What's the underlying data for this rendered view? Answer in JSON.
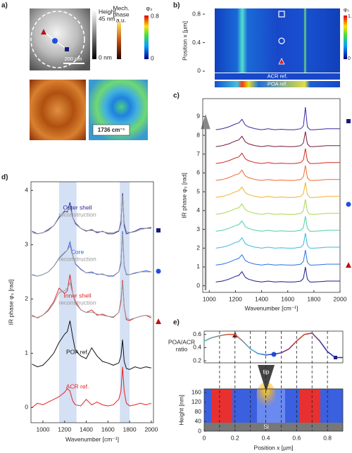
{
  "panel_labels": [
    "a)",
    "b)",
    "c)",
    "d)",
    "e)"
  ],
  "panel_a": {
    "height_label": "Height",
    "height_max": "45 nm",
    "height_min": "0 nm",
    "mech_label": [
      "Mech.",
      "phase"
    ],
    "mech_unit": "a.u.",
    "phase_label": "φ₃",
    "phase_max": 0.8,
    "phase_min": 0,
    "scale_bar": "200 nm",
    "wavenumber_label": "1736 cm⁻¹"
  },
  "panel_b": {
    "ylabel": "Position x [µm]",
    "ylim": [
      -0.02,
      0.88
    ],
    "yticks": [
      0,
      0.4,
      0.8
    ],
    "acr": "ACR ref.",
    "poa": "POA ref.",
    "cbar_label": "φ₃",
    "cbar_max": 1.2,
    "cbar_min": 0
  },
  "chart_data": [
    {
      "type": "line",
      "xlabel": "Wavenumber [cm⁻¹]",
      "ylabel": "IR phase φ₃ [rad]",
      "xlim": [
        890,
        2020
      ],
      "ylim": [
        -0.28,
        4.16
      ],
      "xticks": [
        1000,
        1200,
        1400,
        1600,
        1800,
        2000
      ],
      "yticks": [
        0,
        1,
        2,
        3,
        4
      ],
      "bands": [
        [
          1150,
          1310
        ],
        [
          1710,
          1800
        ]
      ],
      "x": [
        900,
        950,
        1000,
        1050,
        1100,
        1150,
        1200,
        1225,
        1250,
        1275,
        1300,
        1350,
        1400,
        1450,
        1500,
        1550,
        1600,
        1650,
        1700,
        1720,
        1735,
        1750,
        1770,
        1800,
        1850,
        1900,
        1950,
        2000
      ],
      "series": [
        {
          "name": "Outer shell",
          "color": "#2a2a9a",
          "values": [
            3.25,
            3.2,
            3.22,
            3.28,
            3.35,
            3.5,
            3.62,
            3.6,
            3.78,
            3.5,
            3.4,
            3.3,
            3.25,
            3.28,
            3.22,
            3.25,
            3.2,
            3.2,
            3.25,
            3.4,
            3.95,
            3.35,
            3.2,
            3.22,
            3.25,
            3.3,
            3.3,
            3.32
          ]
        },
        {
          "name": "reconstruction",
          "color": "#999999",
          "values": [
            3.22,
            3.2,
            3.22,
            3.26,
            3.35,
            3.52,
            3.6,
            3.62,
            3.7,
            3.5,
            3.38,
            3.3,
            3.26,
            3.26,
            3.24,
            3.24,
            3.22,
            3.22,
            3.26,
            3.45,
            3.9,
            3.4,
            3.24,
            3.22,
            3.24,
            3.28,
            3.3,
            3.3
          ]
        },
        {
          "name": "Core",
          "color": "#3a5fe0",
          "values": [
            2.45,
            2.42,
            2.45,
            2.5,
            2.6,
            2.75,
            2.85,
            2.9,
            3.05,
            2.8,
            2.65,
            2.55,
            2.48,
            2.5,
            2.45,
            2.46,
            2.42,
            2.42,
            2.5,
            2.65,
            3.25,
            2.6,
            2.45,
            2.45,
            2.48,
            2.5,
            2.52,
            2.5
          ]
        },
        {
          "name": "reconstruction",
          "color": "#999999",
          "values": [
            2.44,
            2.42,
            2.45,
            2.5,
            2.6,
            2.76,
            2.86,
            2.9,
            2.98,
            2.8,
            2.64,
            2.54,
            2.48,
            2.48,
            2.46,
            2.45,
            2.43,
            2.43,
            2.5,
            2.7,
            3.2,
            2.62,
            2.46,
            2.45,
            2.47,
            2.5,
            2.5,
            2.5
          ]
        },
        {
          "name": "Inner shell",
          "color": "#e02a2a",
          "values": [
            1.7,
            1.65,
            1.7,
            1.8,
            1.95,
            2.2,
            2.1,
            2.15,
            2.45,
            2.1,
            1.95,
            1.8,
            1.75,
            1.8,
            1.7,
            1.72,
            1.68,
            1.66,
            1.75,
            1.95,
            2.35,
            1.85,
            1.62,
            1.6,
            1.65,
            1.68,
            1.7,
            1.65
          ]
        },
        {
          "name": "reconstruction",
          "color": "#999999",
          "values": [
            1.68,
            1.66,
            1.7,
            1.78,
            1.92,
            2.12,
            2.15,
            2.2,
            2.3,
            2.1,
            1.92,
            1.8,
            1.75,
            1.76,
            1.72,
            1.7,
            1.68,
            1.67,
            1.75,
            2.0,
            2.3,
            1.85,
            1.65,
            1.62,
            1.65,
            1.68,
            1.7,
            1.68
          ]
        },
        {
          "name": "POA ref.",
          "color": "#111111",
          "values": [
            0.8,
            0.75,
            0.78,
            0.88,
            1.0,
            1.2,
            1.35,
            1.4,
            1.6,
            1.3,
            1.05,
            0.95,
            0.9,
            1.1,
            0.95,
            0.85,
            0.82,
            0.78,
            0.82,
            0.95,
            1.25,
            0.85,
            0.72,
            0.7,
            0.75,
            0.72,
            0.75,
            0.73
          ]
        },
        {
          "name": "ACR ref.",
          "color": "#e82020",
          "values": [
            0.0,
            0.08,
            0.05,
            0.1,
            0.15,
            0.2,
            0.28,
            0.35,
            0.3,
            0.12,
            0.05,
            0.03,
            0.15,
            0.05,
            0.1,
            0.05,
            0.03,
            0.05,
            0.15,
            0.3,
            0.75,
            0.3,
            0.08,
            0.03,
            0.05,
            0.08,
            0.05,
            0.08
          ]
        }
      ]
    },
    {
      "type": "line",
      "xlabel": "Wavenumber [cm⁻¹]",
      "ylabel": "IR phase φ₃ [rad]",
      "xlim": [
        950,
        2000
      ],
      "ylim": [
        -0.35,
        9.95
      ],
      "xticks": [
        1000,
        1200,
        1400,
        1600,
        1800,
        2000
      ],
      "yticks": [
        0,
        1,
        2,
        3,
        4,
        5,
        6,
        7,
        8,
        9
      ],
      "x": [
        1050,
        1100,
        1150,
        1200,
        1225,
        1250,
        1275,
        1300,
        1350,
        1400,
        1450,
        1500,
        1550,
        1600,
        1650,
        1700,
        1720,
        1735,
        1750,
        1770,
        1800,
        1850,
        1900,
        1950,
        2000
      ],
      "series": [
        {
          "color": "#1a1a8c",
          "values": [
            0.2,
            0.25,
            0.35,
            0.5,
            0.55,
            0.75,
            0.45,
            0.35,
            0.25,
            0.2,
            0.25,
            0.2,
            0.22,
            0.2,
            0.2,
            0.25,
            0.4,
            1.0,
            0.35,
            0.2,
            0.2,
            0.22,
            0.25,
            0.25,
            0.25
          ]
        },
        {
          "color": "#2a6fe0",
          "values": [
            1.1,
            1.15,
            1.25,
            1.4,
            1.45,
            1.65,
            1.35,
            1.25,
            1.15,
            1.1,
            1.15,
            1.1,
            1.12,
            1.1,
            1.1,
            1.15,
            1.3,
            1.9,
            1.25,
            1.1,
            1.1,
            1.12,
            1.15,
            1.15,
            1.15
          ]
        },
        {
          "color": "#3ab8e0",
          "values": [
            2.0,
            2.05,
            2.15,
            2.3,
            2.35,
            2.55,
            2.25,
            2.15,
            2.05,
            2.0,
            2.05,
            2.0,
            2.02,
            2.0,
            2.0,
            2.05,
            2.2,
            2.8,
            2.15,
            2.0,
            2.0,
            2.02,
            2.05,
            2.05,
            2.05
          ]
        },
        {
          "color": "#4fd0a0",
          "values": [
            2.9,
            2.95,
            3.05,
            3.2,
            3.25,
            3.45,
            3.15,
            3.05,
            2.95,
            2.9,
            2.95,
            2.9,
            2.92,
            2.9,
            2.9,
            2.95,
            3.1,
            3.7,
            3.05,
            2.9,
            2.9,
            2.92,
            2.95,
            2.95,
            2.95
          ]
        },
        {
          "color": "#a8d850",
          "values": [
            3.8,
            3.85,
            3.95,
            4.1,
            4.15,
            4.35,
            4.05,
            3.95,
            3.85,
            3.8,
            3.85,
            3.8,
            3.82,
            3.8,
            3.8,
            3.85,
            4.0,
            4.6,
            3.95,
            3.8,
            3.8,
            3.82,
            3.85,
            3.85,
            3.85
          ]
        },
        {
          "color": "#f0b030",
          "values": [
            4.7,
            4.75,
            4.85,
            5.0,
            5.05,
            5.25,
            4.95,
            4.85,
            4.75,
            4.7,
            4.75,
            4.7,
            4.72,
            4.7,
            4.7,
            4.75,
            4.9,
            5.5,
            4.85,
            4.7,
            4.7,
            4.72,
            4.75,
            4.75,
            4.75
          ]
        },
        {
          "color": "#f06a30",
          "values": [
            5.6,
            5.65,
            5.75,
            5.9,
            5.95,
            6.15,
            5.85,
            5.75,
            5.65,
            5.6,
            5.65,
            5.6,
            5.62,
            5.6,
            5.6,
            5.65,
            5.8,
            6.4,
            5.75,
            5.6,
            5.6,
            5.62,
            5.65,
            5.65,
            5.65
          ]
        },
        {
          "color": "#d02a20",
          "values": [
            6.5,
            6.55,
            6.65,
            6.8,
            6.85,
            7.05,
            6.75,
            6.65,
            6.55,
            6.5,
            6.55,
            6.5,
            6.52,
            6.5,
            6.5,
            6.55,
            6.7,
            7.3,
            6.65,
            6.5,
            6.5,
            6.52,
            6.55,
            6.55,
            6.55
          ]
        },
        {
          "color": "#7a1a3a",
          "values": [
            7.4,
            7.45,
            7.55,
            7.7,
            7.75,
            7.95,
            7.65,
            7.55,
            7.45,
            7.4,
            7.45,
            7.4,
            7.42,
            7.4,
            7.4,
            7.45,
            7.6,
            8.2,
            7.55,
            7.4,
            7.4,
            7.42,
            7.45,
            7.45,
            7.45
          ]
        },
        {
          "color": "#3a2aa0",
          "values": [
            8.3,
            8.35,
            8.45,
            8.6,
            8.65,
            8.85,
            8.55,
            8.45,
            8.35,
            8.3,
            8.35,
            8.3,
            8.32,
            8.3,
            8.3,
            8.35,
            8.5,
            9.5,
            8.45,
            8.3,
            8.3,
            8.32,
            8.35,
            8.35,
            8.35
          ]
        }
      ]
    },
    {
      "type": "line",
      "xlabel": "Position x [µm]",
      "ylabel": [
        "POA/ACR",
        "ratio"
      ],
      "xlim": [
        0,
        0.9
      ],
      "ylim": [
        0.17,
        0.65
      ],
      "xticks": [
        0,
        0.2,
        0.4,
        0.6,
        0.8
      ],
      "yticks": [
        0.2,
        0.4,
        0.6
      ],
      "xgrid": [
        0.1,
        0.2,
        0.3,
        0.4,
        0.5,
        0.6,
        0.7,
        0.8
      ],
      "x": [
        0,
        0.05,
        0.1,
        0.15,
        0.2,
        0.25,
        0.3,
        0.35,
        0.4,
        0.45,
        0.5,
        0.55,
        0.6,
        0.65,
        0.7,
        0.75,
        0.8,
        0.85,
        0.9
      ],
      "series": [
        {
          "color": "#3a8ad0",
          "values": [
            0.5,
            0.55,
            0.58,
            0.6,
            0.6,
            0.5,
            0.38,
            0.31,
            0.29,
            0.3,
            0.32,
            0.38,
            0.5,
            0.6,
            0.62,
            0.5,
            0.34,
            0.25,
            0.25
          ]
        }
      ],
      "height_axis": {
        "label": "Height [nm]",
        "ylim": [
          0,
          175
        ],
        "yticks": [
          0,
          40,
          80,
          120,
          160
        ]
      },
      "annotations": [
        "tip",
        "Si"
      ]
    }
  ]
}
